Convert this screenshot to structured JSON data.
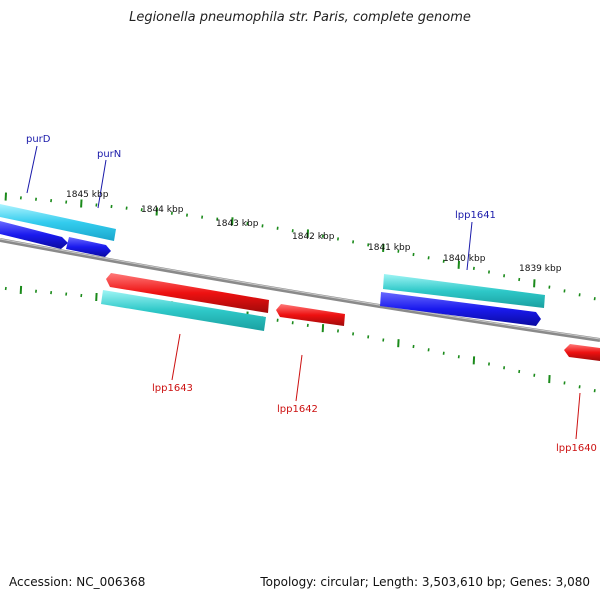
{
  "title": "Legionella pneumophila str. Paris, complete genome",
  "footer": {
    "accession": "Accession: NC_006368",
    "summary": "Topology: circular; Length: 3,503,610 bp; Genes: 3,080"
  },
  "colors": {
    "forward_cds": "#1a1aee",
    "reverse_cds": "#ee1111",
    "forward_gene": "#33cccc",
    "reverse_gene": "#33cccc",
    "gene_light": "#33ccee",
    "backbone": "#8a8a8a",
    "ticks": "#1a8a1a",
    "forward_label": "#1a1aaa",
    "reverse_label": "#cc1111"
  },
  "scale": {
    "labels": [
      "1845 kbp",
      "1844 kbp",
      "1843 kbp",
      "1842 kbp",
      "1841 kbp",
      "1840 kbp",
      "1839 kbp"
    ]
  },
  "gene_labels": {
    "forward": [
      "purD",
      "purN",
      "lpp1641"
    ],
    "reverse": [
      "lpp1643",
      "lpp1642",
      "lpp1640"
    ]
  }
}
